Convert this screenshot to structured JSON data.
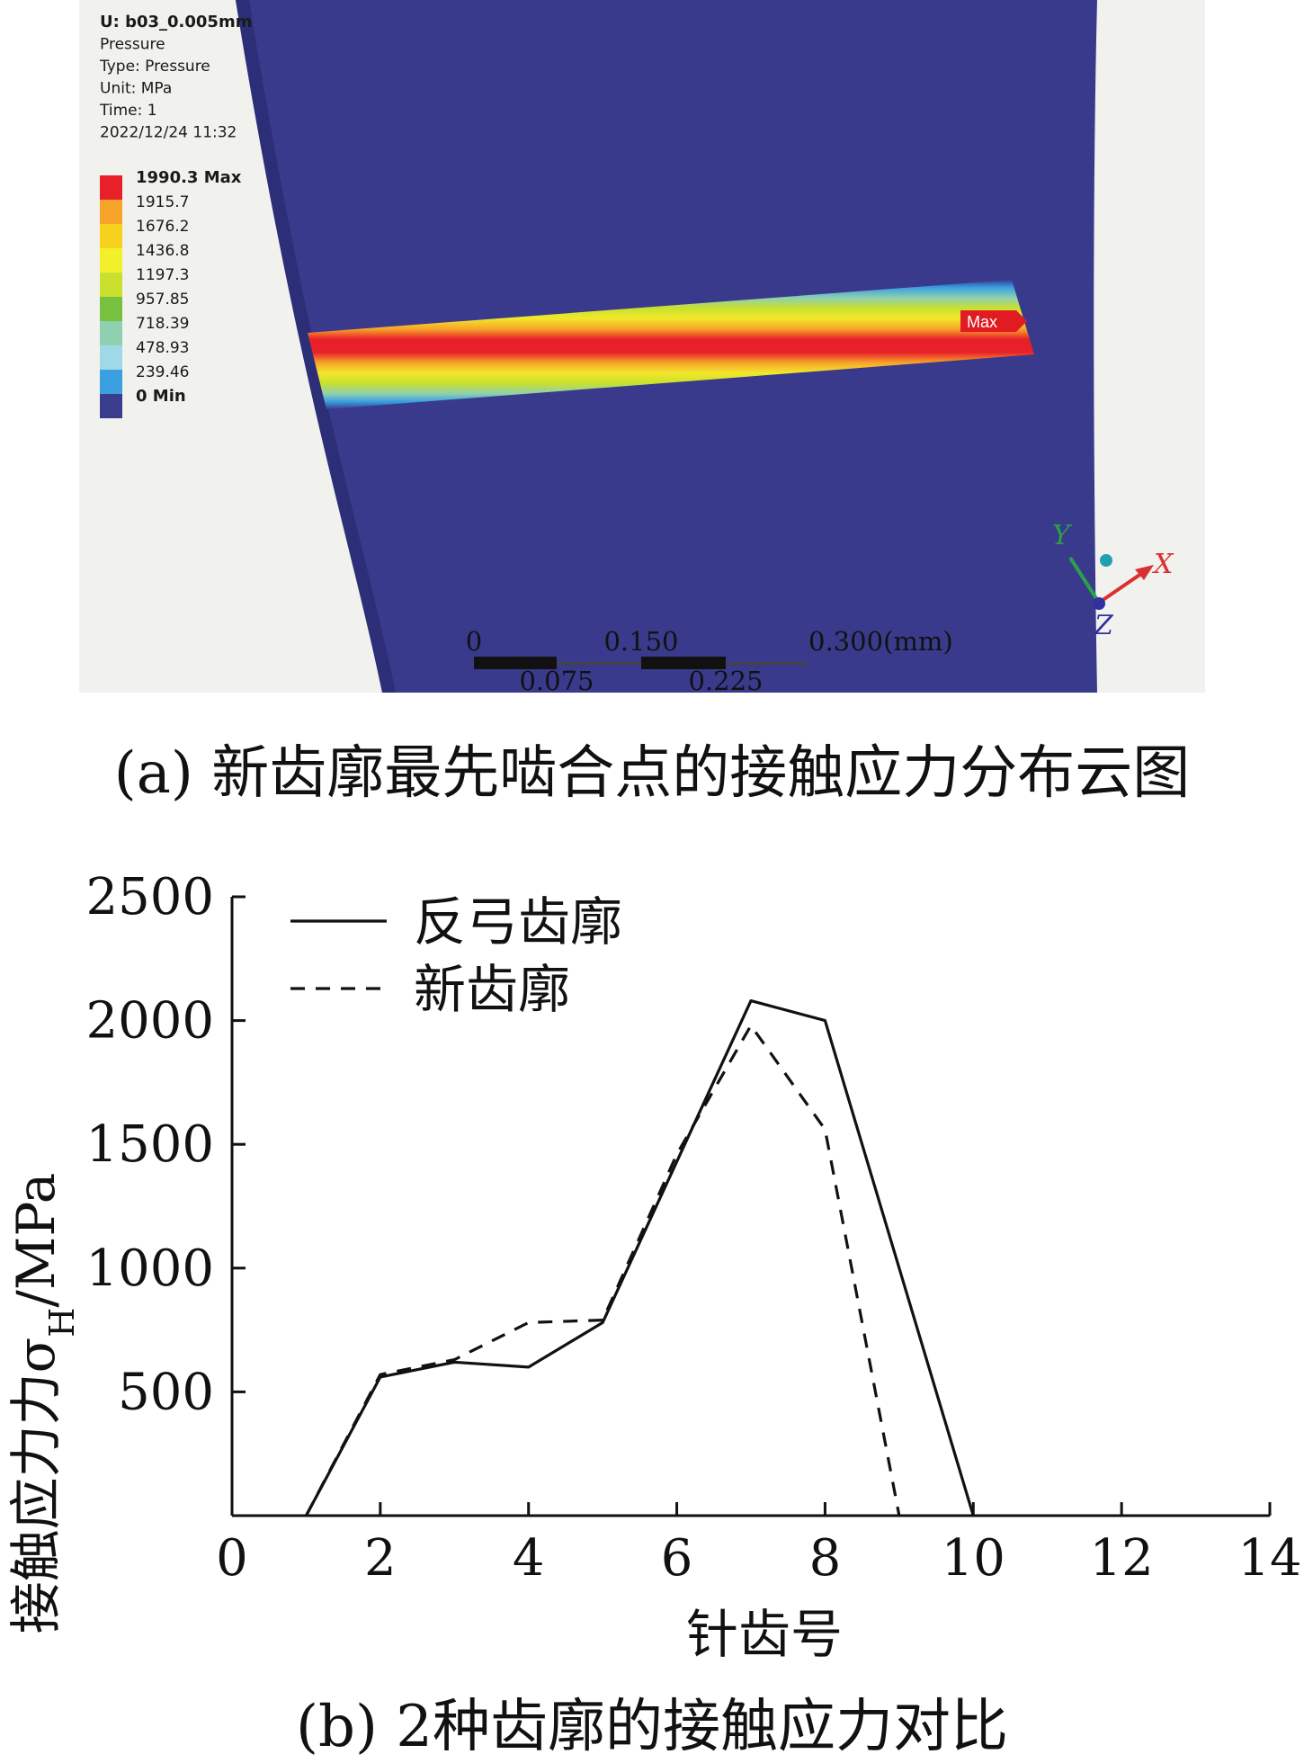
{
  "fea_view": {
    "info_lines": [
      "U: b03_0.005mm",
      "Pressure",
      "Type: Pressure",
      "Unit: MPa",
      "Time: 1",
      "2022/12/24 11:32"
    ],
    "legend_levels": [
      {
        "label": "1990.3 Max",
        "color": "#e8202a"
      },
      {
        "label": "1915.7",
        "color": "#f7a42a"
      },
      {
        "label": "1676.2",
        "color": "#f6d21e"
      },
      {
        "label": "1436.8",
        "color": "#f2f02a"
      },
      {
        "label": "1197.3",
        "color": "#c9e02e"
      },
      {
        "label": "957.85",
        "color": "#78c040"
      },
      {
        "label": "718.39",
        "color": "#8fd0b0"
      },
      {
        "label": "478.93",
        "color": "#9fd8e6"
      },
      {
        "label": "239.46",
        "color": "#3aa0e0"
      },
      {
        "label": "0 Min",
        "color": "#3a3c8e"
      }
    ],
    "max_tag": "Max",
    "scale_top": [
      "0",
      "0.150",
      "0.300(mm)"
    ],
    "scale_bottom": [
      "0.075",
      "0.225"
    ],
    "axis_x": "X",
    "axis_y": "Y",
    "axis_z": "Z",
    "background_color": "#3a3a8c"
  },
  "caption_a": "(a)  新齿廓最先啮合点的接触应力分布云图",
  "caption_b": "(b)  2种齿廓的接触应力对比",
  "chart_data": {
    "type": "line",
    "xlabel": "针齿号",
    "ylabel": "接触应力力σH/MPa",
    "ylabel_main": "接触应力力σ",
    "ylabel_sub": "H",
    "ylabel_unit": "/MPa",
    "xlim": [
      0,
      14
    ],
    "ylim": [
      0,
      2500
    ],
    "xticks": [
      0,
      2,
      4,
      6,
      8,
      10,
      12,
      14
    ],
    "yticks": [
      500,
      1000,
      1500,
      2000,
      2500
    ],
    "legend_position": "top-left",
    "series": [
      {
        "name": "反弓齿廓",
        "style": "solid",
        "x": [
          1,
          2,
          3,
          4,
          5,
          6,
          7,
          8,
          9,
          10
        ],
        "y": [
          0,
          560,
          620,
          600,
          780,
          1430,
          2080,
          2000,
          1000,
          0
        ]
      },
      {
        "name": "新齿廓",
        "style": "dashed",
        "x": [
          1,
          2,
          3,
          4,
          5,
          6,
          7,
          8,
          9
        ],
        "y": [
          0,
          570,
          630,
          780,
          790,
          1460,
          1980,
          1560,
          0
        ]
      }
    ]
  }
}
